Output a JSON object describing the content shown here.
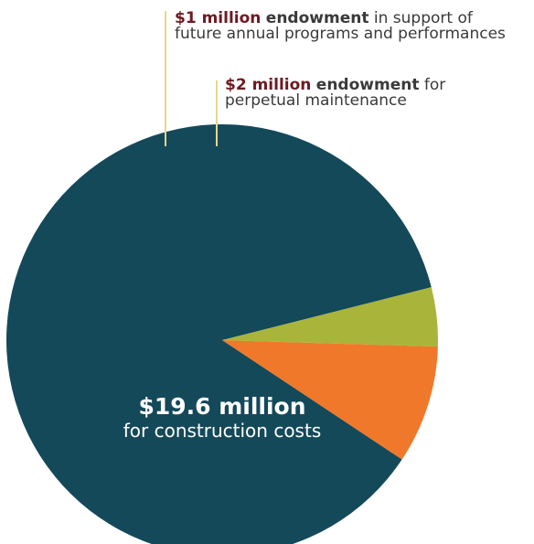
{
  "chart_data": {
    "type": "pie",
    "slices": [
      {
        "value": 19.6,
        "amount": "$19.6 million",
        "label": "for construction costs",
        "color": "#14495a"
      },
      {
        "value": 1,
        "amount": "$1 million",
        "kind": "endowment",
        "label_line1": "in support of",
        "label_line2": "future annual programs and performances",
        "color": "#a9b53a"
      },
      {
        "value": 2,
        "amount": "$2 million",
        "kind": "endowment",
        "label_line1": "for",
        "label_line2": "perpetual maintenance",
        "color": "#f0782a"
      }
    ],
    "leader_color": "#e8d68a"
  }
}
